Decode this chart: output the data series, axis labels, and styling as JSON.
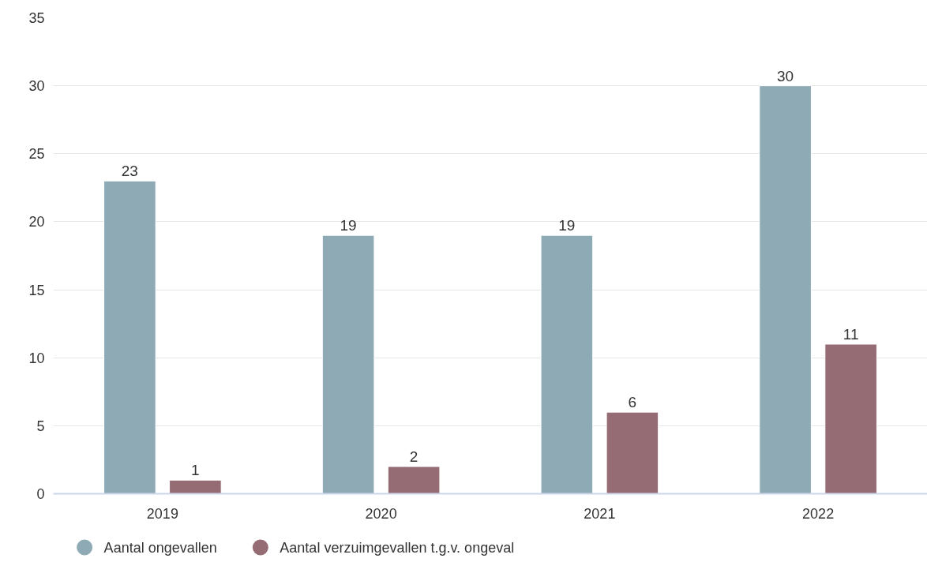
{
  "chart_data": {
    "type": "bar",
    "categories": [
      "2019",
      "2020",
      "2021",
      "2022"
    ],
    "series": [
      {
        "name": "Aantal ongevallen",
        "color": "#8eaab5",
        "values": [
          23,
          19,
          19,
          30
        ]
      },
      {
        "name": "Aantal verzuimgevallen t.g.v. ongeval",
        "color": "#956b74",
        "values": [
          1,
          2,
          6,
          11
        ]
      }
    ],
    "ylim": [
      0,
      35
    ],
    "yticks": [
      0,
      5,
      10,
      15,
      20,
      25,
      30,
      35
    ],
    "grid": "y",
    "legend": "bottom left",
    "data_labels": true
  }
}
